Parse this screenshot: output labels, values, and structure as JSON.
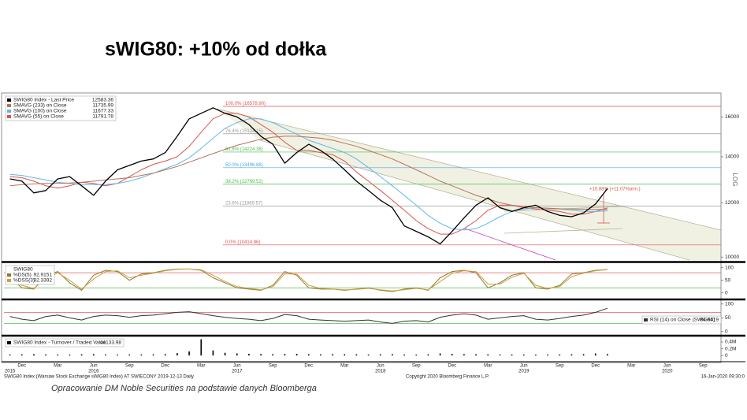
{
  "title": "sWIG80: +10% od dołka",
  "footer_left": "SWIG80 Index (Warsaw Stock Exchange sWIG80 Index) AT SWIECONY 2019-12-13 Daily",
  "footer_center": "Copyright 2020 Bloomberg Finance L.P.",
  "footer_right": "16-Jan-2020 09:30:0",
  "caption": "Opracowanie DM Noble Securities na podstawie danych Bloomberga",
  "chart_data": [
    {
      "type": "line",
      "log": true,
      "axis_label": "LOG",
      "annotation": "+10.88% (+11.07%ann.)",
      "categories": [
        null,
        "Dec",
        null,
        null,
        "Mar",
        null,
        null,
        "Jun",
        null,
        null,
        "Sep",
        null,
        null,
        "Dec",
        null,
        null,
        "Mar",
        null,
        null,
        "Jun",
        null,
        null,
        "Sep",
        null,
        null,
        "Dec",
        null,
        null,
        "Mar",
        null,
        null,
        "Jun",
        null,
        null,
        "Sep",
        null,
        null,
        "Dec",
        null,
        null,
        "Mar",
        null,
        null,
        "Jun",
        null,
        null,
        "Sep",
        null,
        null,
        "Dec",
        null,
        null,
        "Mar",
        null,
        null,
        "Jun",
        null,
        null,
        "Sep",
        null
      ],
      "years": [
        "2015",
        null,
        null,
        null,
        null,
        null,
        null,
        "2016",
        null,
        null,
        null,
        null,
        null,
        null,
        null,
        null,
        null,
        null,
        null,
        "2017",
        null,
        null,
        null,
        null,
        null,
        null,
        null,
        null,
        null,
        null,
        null,
        "2018",
        null,
        null,
        null,
        null,
        null,
        null,
        null,
        null,
        null,
        null,
        null,
        "2019",
        null,
        null,
        null,
        null,
        null,
        null,
        null,
        null,
        null,
        null,
        null,
        "2020",
        null,
        null,
        null,
        null
      ],
      "ylim": [
        9900,
        17250
      ],
      "yticks": [
        10000,
        12000,
        14000,
        16000
      ],
      "series": [
        {
          "name": "SWIG80 Index - Last Price",
          "last": 12583.36,
          "color": "#000000",
          "width": 1.3,
          "values": [
            13000,
            12900,
            12400,
            12500,
            13000,
            13100,
            12700,
            12300,
            12900,
            13400,
            13600,
            13800,
            13900,
            14200,
            15000,
            15900,
            16200,
            16500,
            16200,
            16000,
            15600,
            15000,
            14600,
            13700,
            14200,
            14600,
            14300,
            13900,
            13400,
            12900,
            12500,
            12100,
            11800,
            11100,
            10900,
            10700,
            10450,
            10900,
            11400,
            11900,
            12200,
            11800,
            11650,
            11800,
            11900,
            11650,
            11500,
            11450,
            11600,
            11950,
            12583,
            null,
            null,
            null,
            null,
            null,
            null,
            null,
            null,
            null
          ]
        },
        {
          "name": "SMAVG (233) on Close",
          "last": 11735.99,
          "color": "#b5735a",
          "width": 1,
          "values": [
            12700,
            12750,
            12780,
            12800,
            12800,
            12820,
            12850,
            12900,
            12950,
            13000,
            13050,
            13150,
            13250,
            13400,
            13550,
            13750,
            13950,
            14150,
            14350,
            14550,
            14700,
            14850,
            14950,
            15000,
            15000,
            14950,
            14900,
            14800,
            14650,
            14500,
            14300,
            14100,
            13900,
            13650,
            13400,
            13150,
            12900,
            12700,
            12500,
            12300,
            12150,
            12000,
            11900,
            11850,
            11800,
            11780,
            11760,
            11750,
            11740,
            11735,
            11736,
            null,
            null,
            null,
            null,
            null,
            null,
            null,
            null,
            null
          ]
        },
        {
          "name": "SMAVG (100) on Close",
          "last": 11677.33,
          "color": "#5fb8e6",
          "width": 1,
          "values": [
            13200,
            13150,
            13050,
            12950,
            12850,
            12800,
            12750,
            12750,
            12750,
            12800,
            12900,
            13050,
            13250,
            13450,
            13650,
            13950,
            14400,
            14900,
            15400,
            15700,
            15900,
            15900,
            15700,
            15400,
            15100,
            14800,
            14600,
            14400,
            14200,
            13900,
            13500,
            13100,
            12700,
            12300,
            11900,
            11500,
            11200,
            11000,
            10950,
            11000,
            11200,
            11450,
            11650,
            11750,
            11800,
            11780,
            11750,
            11700,
            11660,
            11650,
            11677,
            null,
            null,
            null,
            null,
            null,
            null,
            null,
            null,
            null
          ]
        },
        {
          "name": "SMAVG (55) on Close",
          "last": 11791.78,
          "color": "#d9534f",
          "width": 1,
          "values": [
            13100,
            13050,
            12900,
            12700,
            12600,
            12700,
            12850,
            12800,
            12700,
            12800,
            13100,
            13400,
            13650,
            13800,
            14000,
            14500,
            15200,
            15900,
            16200,
            16200,
            16000,
            15600,
            15200,
            14700,
            14300,
            14300,
            14200,
            14100,
            13800,
            13300,
            12900,
            12500,
            12100,
            11700,
            11300,
            11000,
            10800,
            10800,
            11000,
            11300,
            11700,
            11900,
            11900,
            11800,
            11750,
            11700,
            11650,
            11550,
            11550,
            11650,
            11790,
            null,
            null,
            null,
            null,
            null,
            null,
            null,
            null,
            null
          ]
        }
      ],
      "fib_levels": [
        {
          "label": "100.0% (16578.90)",
          "value": 16578.9,
          "color": "#d9534f"
        },
        {
          "label": "76.4% (15124.15)",
          "value": 15124.15,
          "color": "#9a9a9a"
        },
        {
          "label": "61.8% (14224.38)",
          "value": 14224.38,
          "color": "#4cbb4c"
        },
        {
          "label": "50.0% (13496.88)",
          "value": 13496.88,
          "color": "#4aa8e8"
        },
        {
          "label": "38.2% (12769.52)",
          "value": 12769.52,
          "color": "#4cbb4c"
        },
        {
          "label": "23.6% (11869.57)",
          "value": 11869.57,
          "color": "#9a9a9a"
        },
        {
          "label": "0.0% (10414.86)",
          "value": 10414.86,
          "color": "#d9534f"
        }
      ]
    },
    {
      "type": "line",
      "legend_title": "SWIG80",
      "ylim": [
        -20,
        115
      ],
      "yticks": [
        0,
        50,
        100
      ],
      "hlines": [
        {
          "value": 80,
          "color": "#e06060"
        },
        {
          "value": 20,
          "color": "#50c050"
        }
      ],
      "series": [
        {
          "name": "%DS(5)",
          "last": 92.9151,
          "color": "#8a7a30",
          "width": 1,
          "values": [
            60,
            20,
            15,
            70,
            85,
            40,
            10,
            70,
            90,
            85,
            50,
            75,
            80,
            90,
            95,
            95,
            90,
            60,
            40,
            20,
            15,
            10,
            30,
            85,
            70,
            20,
            15,
            15,
            10,
            15,
            20,
            10,
            5,
            15,
            20,
            10,
            60,
            85,
            90,
            80,
            20,
            40,
            70,
            80,
            20,
            15,
            30,
            75,
            80,
            90,
            92.9,
            null,
            null,
            null,
            null,
            null,
            null,
            null,
            null,
            null
          ]
        },
        {
          "name": "%DSS(3)",
          "last": 92.3392,
          "color": "#d0a040",
          "width": 1,
          "values": [
            55,
            30,
            18,
            55,
            80,
            50,
            15,
            55,
            85,
            88,
            60,
            70,
            78,
            88,
            94,
            95,
            92,
            70,
            45,
            25,
            18,
            12,
            25,
            75,
            75,
            30,
            18,
            15,
            12,
            14,
            18,
            12,
            8,
            12,
            18,
            12,
            45,
            78,
            88,
            85,
            35,
            35,
            62,
            78,
            30,
            18,
            25,
            65,
            78,
            88,
            92.3,
            null,
            null,
            null,
            null,
            null,
            null,
            null,
            null,
            null
          ]
        }
      ]
    },
    {
      "type": "line",
      "ylim": [
        -9,
        111
      ],
      "yticks": [
        0,
        50,
        100
      ],
      "hlines": [
        {
          "value": 70,
          "color": "#e06060"
        },
        {
          "value": 30,
          "color": "#50c050"
        }
      ],
      "series": [
        {
          "name": "RSI (14) on Close (SWIG80)",
          "last": 84.6419,
          "color": "#333333",
          "width": 1,
          "values": [
            55,
            45,
            40,
            55,
            60,
            50,
            42,
            55,
            60,
            58,
            52,
            58,
            60,
            65,
            70,
            72,
            65,
            58,
            52,
            48,
            45,
            40,
            48,
            62,
            58,
            45,
            42,
            40,
            38,
            40,
            42,
            35,
            30,
            38,
            40,
            35,
            52,
            60,
            65,
            60,
            45,
            50,
            55,
            58,
            45,
            42,
            48,
            55,
            60,
            70,
            84.6,
            null,
            null,
            null,
            null,
            null,
            null,
            null,
            null,
            null
          ]
        }
      ]
    },
    {
      "type": "bar",
      "ylim": [
        -160000,
        540000
      ],
      "yticks": [
        0,
        {
          "value": 200000,
          "label": "0.2M"
        },
        {
          "value": 400000,
          "label": "0.4M"
        }
      ],
      "series": [
        {
          "name": "SWIG80 Index - Turnover / Traded Value",
          "last": 44133.98,
          "color": "#000000",
          "values": [
            30000,
            35000,
            40000,
            32000,
            30000,
            28000,
            35000,
            40000,
            30000,
            28000,
            30000,
            32000,
            35000,
            40000,
            70000,
            120000,
            480000,
            150000,
            80000,
            60000,
            50000,
            45000,
            40000,
            45000,
            50000,
            40000,
            35000,
            40000,
            38000,
            35000,
            30000,
            35000,
            40000,
            30000,
            28000,
            35000,
            60000,
            45000,
            40000,
            38000,
            35000,
            30000,
            32000,
            30000,
            28000,
            30000,
            32000,
            35000,
            40000,
            60000,
            44133.98,
            null,
            null,
            null,
            null,
            null,
            null,
            null,
            null,
            null
          ]
        }
      ]
    }
  ]
}
